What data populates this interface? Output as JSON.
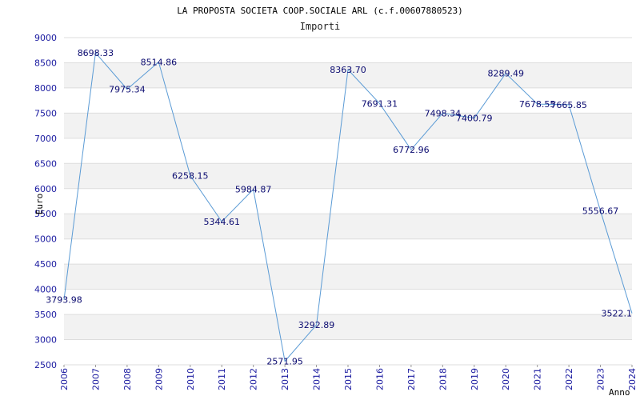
{
  "chart_data": {
    "type": "line",
    "title": "LA PROPOSTA SOCIETA COOP.SOCIALE ARL (c.f.00607880523)",
    "subtitle": "Importi",
    "xlabel": "Anno",
    "ylabel": "Euro",
    "ylim": [
      2500,
      9000
    ],
    "yticks": [
      2500,
      3000,
      3500,
      4000,
      4500,
      5000,
      5500,
      6000,
      6500,
      7000,
      7500,
      8000,
      8500,
      9000
    ],
    "x": [
      "2006",
      "2007",
      "2008",
      "2009",
      "2010",
      "2011",
      "2012",
      "2013",
      "2014",
      "2015",
      "2016",
      "2017",
      "2018",
      "2019",
      "2020",
      "2021",
      "2022",
      "2023",
      "2024"
    ],
    "values": [
      3793.98,
      8698.33,
      7975.34,
      8514.86,
      6258.15,
      5344.61,
      5984.87,
      2571.95,
      3292.89,
      8363.7,
      7691.31,
      6772.96,
      7498.34,
      7400.79,
      8289.49,
      7678.55,
      7665.85,
      5556.67,
      3522.1
    ],
    "labels": [
      "3793.98",
      "8698.33",
      "7975.34",
      "8514.86",
      "6258.15",
      "5344.61",
      "5984.87",
      "2571.95",
      "3292.89",
      "8363.70",
      "7691.31",
      "6772.96",
      "7498.34",
      "7400.79",
      "8289.49",
      "7678.55",
      "7665.85",
      "5556.67",
      "3522.1"
    ],
    "grid": true,
    "line_color": "#5b9bd5",
    "band_color": "#f2f2f2",
    "tick_color": "#1a1aa0",
    "label_color": "#0b0b70"
  }
}
